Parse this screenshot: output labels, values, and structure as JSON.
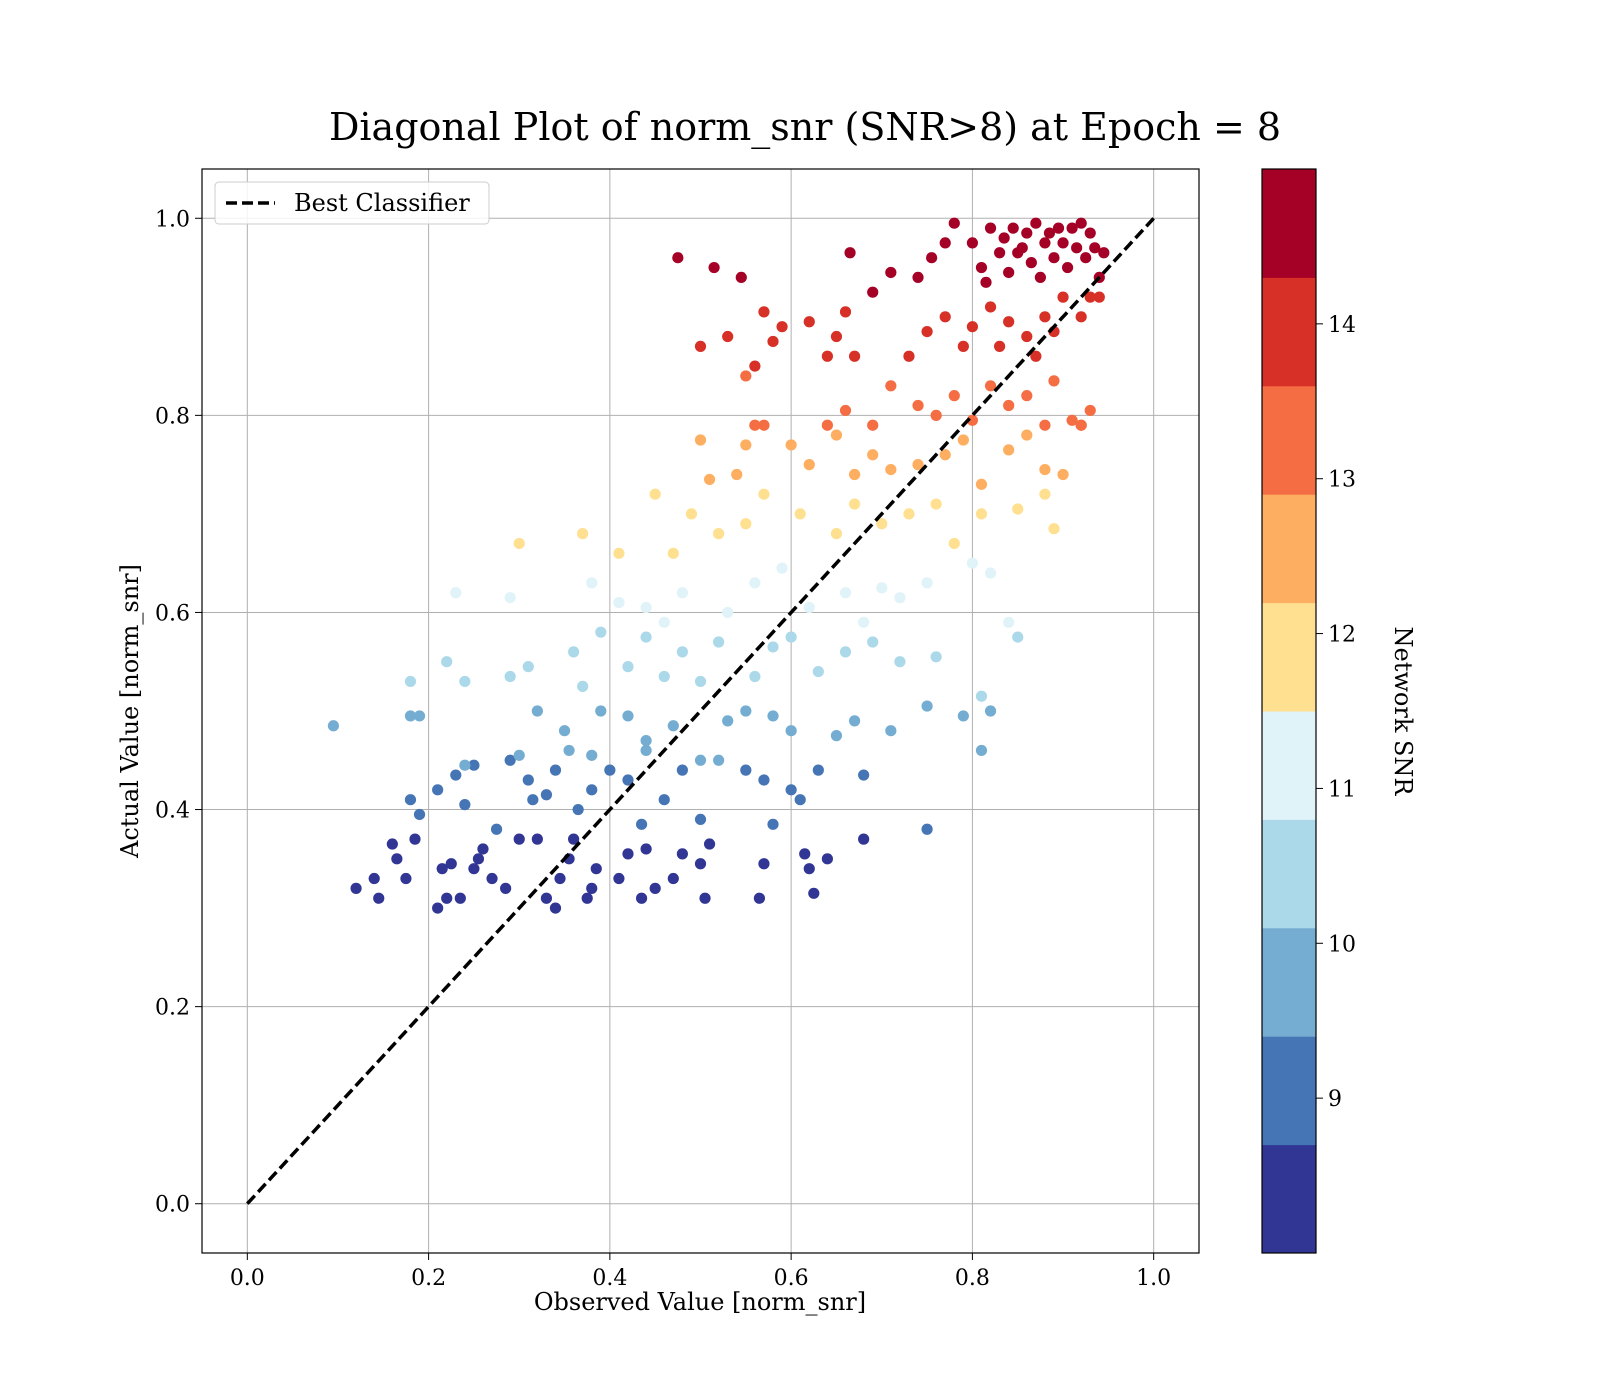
{
  "chart_data": {
    "type": "scatter",
    "title": "Diagonal Plot of norm_snr (SNR>8) at Epoch = 8",
    "xlabel": "Observed Value [norm_snr]",
    "ylabel": "Actual Value [norm_snr]",
    "xlim": [
      -0.05,
      1.05
    ],
    "ylim": [
      -0.05,
      1.05
    ],
    "xticks": [
      0.0,
      0.2,
      0.4,
      0.6,
      0.8,
      1.0
    ],
    "yticks": [
      0.0,
      0.2,
      0.4,
      0.6,
      0.8,
      1.0
    ],
    "xtick_labels": [
      "0.0",
      "0.2",
      "0.4",
      "0.6",
      "0.8",
      "1.0"
    ],
    "ytick_labels": [
      "0.0",
      "0.2",
      "0.4",
      "0.6",
      "0.8",
      "1.0"
    ],
    "grid": true,
    "legend": {
      "placement": "upper-left",
      "entries": [
        "Best Classifier"
      ]
    },
    "reference_line": {
      "name": "Best Classifier",
      "style": "dashed",
      "color": "#000000",
      "x": [
        0.0,
        1.0
      ],
      "y": [
        0.0,
        1.0
      ]
    },
    "colorbar": {
      "label": "Network SNR",
      "range": [
        8,
        15
      ],
      "ticks": [
        9,
        10,
        11,
        12,
        13,
        14
      ],
      "tick_labels": [
        "9",
        "10",
        "11",
        "12",
        "13",
        "14"
      ],
      "colors": [
        "#313695",
        "#4575b4",
        "#74add1",
        "#abd9e9",
        "#e0f3f8",
        "#fee090",
        "#fdae61",
        "#f46d43",
        "#d73027",
        "#a50026"
      ]
    },
    "point_columns": [
      "x",
      "y",
      "snr"
    ],
    "points": [
      [
        0.12,
        0.32,
        8.2
      ],
      [
        0.14,
        0.33,
        8.3
      ],
      [
        0.145,
        0.31,
        8.2
      ],
      [
        0.16,
        0.365,
        8.4
      ],
      [
        0.165,
        0.35,
        8.3
      ],
      [
        0.175,
        0.33,
        8.2
      ],
      [
        0.185,
        0.37,
        8.4
      ],
      [
        0.21,
        0.3,
        8.1
      ],
      [
        0.215,
        0.34,
        8.3
      ],
      [
        0.22,
        0.31,
        8.2
      ],
      [
        0.225,
        0.345,
        8.3
      ],
      [
        0.235,
        0.31,
        8.1
      ],
      [
        0.25,
        0.34,
        8.3
      ],
      [
        0.255,
        0.35,
        8.4
      ],
      [
        0.26,
        0.36,
        8.5
      ],
      [
        0.27,
        0.33,
        8.2
      ],
      [
        0.285,
        0.32,
        8.2
      ],
      [
        0.3,
        0.37,
        8.4
      ],
      [
        0.32,
        0.37,
        8.4
      ],
      [
        0.33,
        0.31,
        8.2
      ],
      [
        0.34,
        0.3,
        8.1
      ],
      [
        0.345,
        0.33,
        8.3
      ],
      [
        0.355,
        0.35,
        8.4
      ],
      [
        0.36,
        0.37,
        8.5
      ],
      [
        0.375,
        0.31,
        8.1
      ],
      [
        0.38,
        0.32,
        8.2
      ],
      [
        0.385,
        0.34,
        8.3
      ],
      [
        0.41,
        0.33,
        8.3
      ],
      [
        0.42,
        0.355,
        8.4
      ],
      [
        0.435,
        0.31,
        8.2
      ],
      [
        0.44,
        0.36,
        8.5
      ],
      [
        0.45,
        0.32,
        8.2
      ],
      [
        0.47,
        0.33,
        8.3
      ],
      [
        0.48,
        0.355,
        8.4
      ],
      [
        0.5,
        0.345,
        8.3
      ],
      [
        0.505,
        0.31,
        8.2
      ],
      [
        0.51,
        0.365,
        8.5
      ],
      [
        0.565,
        0.31,
        8.2
      ],
      [
        0.57,
        0.345,
        8.4
      ],
      [
        0.615,
        0.355,
        8.5
      ],
      [
        0.62,
        0.34,
        8.3
      ],
      [
        0.625,
        0.315,
        8.2
      ],
      [
        0.64,
        0.35,
        8.4
      ],
      [
        0.68,
        0.37,
        8.6
      ],
      [
        0.75,
        0.38,
        8.8
      ],
      [
        0.18,
        0.41,
        9.0
      ],
      [
        0.19,
        0.395,
        8.9
      ],
      [
        0.21,
        0.42,
        9.1
      ],
      [
        0.23,
        0.435,
        9.2
      ],
      [
        0.24,
        0.405,
        9.0
      ],
      [
        0.25,
        0.445,
        9.3
      ],
      [
        0.275,
        0.38,
        8.9
      ],
      [
        0.29,
        0.45,
        9.3
      ],
      [
        0.31,
        0.43,
        9.2
      ],
      [
        0.315,
        0.41,
        9.1
      ],
      [
        0.33,
        0.415,
        9.1
      ],
      [
        0.34,
        0.44,
        9.3
      ],
      [
        0.355,
        0.46,
        9.4
      ],
      [
        0.365,
        0.4,
        9.0
      ],
      [
        0.38,
        0.42,
        9.1
      ],
      [
        0.4,
        0.44,
        9.3
      ],
      [
        0.42,
        0.43,
        9.2
      ],
      [
        0.435,
        0.385,
        8.9
      ],
      [
        0.44,
        0.46,
        9.4
      ],
      [
        0.46,
        0.41,
        9.1
      ],
      [
        0.48,
        0.44,
        9.3
      ],
      [
        0.5,
        0.39,
        8.9
      ],
      [
        0.52,
        0.45,
        9.4
      ],
      [
        0.55,
        0.44,
        9.3
      ],
      [
        0.57,
        0.43,
        9.2
      ],
      [
        0.58,
        0.385,
        8.9
      ],
      [
        0.6,
        0.42,
        9.1
      ],
      [
        0.61,
        0.41,
        9.1
      ],
      [
        0.63,
        0.44,
        9.3
      ],
      [
        0.68,
        0.435,
        9.3
      ],
      [
        0.095,
        0.485,
        9.8
      ],
      [
        0.18,
        0.495,
        9.7
      ],
      [
        0.19,
        0.495,
        9.6
      ],
      [
        0.24,
        0.445,
        9.5
      ],
      [
        0.3,
        0.455,
        9.6
      ],
      [
        0.32,
        0.5,
        9.8
      ],
      [
        0.35,
        0.48,
        9.7
      ],
      [
        0.38,
        0.455,
        9.6
      ],
      [
        0.39,
        0.5,
        9.9
      ],
      [
        0.42,
        0.495,
        9.8
      ],
      [
        0.44,
        0.47,
        9.7
      ],
      [
        0.47,
        0.485,
        9.8
      ],
      [
        0.5,
        0.45,
        9.6
      ],
      [
        0.53,
        0.49,
        9.8
      ],
      [
        0.55,
        0.5,
        9.9
      ],
      [
        0.58,
        0.495,
        9.8
      ],
      [
        0.6,
        0.48,
        9.7
      ],
      [
        0.65,
        0.475,
        9.6
      ],
      [
        0.67,
        0.49,
        9.8
      ],
      [
        0.71,
        0.48,
        9.7
      ],
      [
        0.75,
        0.505,
        9.9
      ],
      [
        0.79,
        0.495,
        9.8
      ],
      [
        0.81,
        0.46,
        9.6
      ],
      [
        0.82,
        0.5,
        9.9
      ],
      [
        0.18,
        0.53,
        10.3
      ],
      [
        0.22,
        0.55,
        10.4
      ],
      [
        0.24,
        0.53,
        10.3
      ],
      [
        0.29,
        0.535,
        10.2
      ],
      [
        0.31,
        0.545,
        10.4
      ],
      [
        0.36,
        0.56,
        10.5
      ],
      [
        0.37,
        0.525,
        10.3
      ],
      [
        0.39,
        0.58,
        10.6
      ],
      [
        0.42,
        0.545,
        10.4
      ],
      [
        0.44,
        0.575,
        10.6
      ],
      [
        0.46,
        0.535,
        10.3
      ],
      [
        0.48,
        0.56,
        10.5
      ],
      [
        0.5,
        0.53,
        10.2
      ],
      [
        0.52,
        0.57,
        10.5
      ],
      [
        0.56,
        0.535,
        10.3
      ],
      [
        0.58,
        0.565,
        10.4
      ],
      [
        0.6,
        0.575,
        10.6
      ],
      [
        0.63,
        0.54,
        10.3
      ],
      [
        0.66,
        0.56,
        10.5
      ],
      [
        0.69,
        0.57,
        10.5
      ],
      [
        0.72,
        0.55,
        10.4
      ],
      [
        0.76,
        0.555,
        10.4
      ],
      [
        0.81,
        0.515,
        10.2
      ],
      [
        0.85,
        0.575,
        10.6
      ],
      [
        0.23,
        0.62,
        11.2
      ],
      [
        0.29,
        0.615,
        11.1
      ],
      [
        0.38,
        0.63,
        11.2
      ],
      [
        0.41,
        0.61,
        11.0
      ],
      [
        0.44,
        0.605,
        11.0
      ],
      [
        0.46,
        0.59,
        10.9
      ],
      [
        0.48,
        0.62,
        11.1
      ],
      [
        0.53,
        0.6,
        11.0
      ],
      [
        0.56,
        0.63,
        11.2
      ],
      [
        0.59,
        0.645,
        11.3
      ],
      [
        0.62,
        0.605,
        11.0
      ],
      [
        0.66,
        0.62,
        11.1
      ],
      [
        0.68,
        0.59,
        10.9
      ],
      [
        0.7,
        0.625,
        11.1
      ],
      [
        0.72,
        0.615,
        11.1
      ],
      [
        0.75,
        0.63,
        11.2
      ],
      [
        0.8,
        0.65,
        11.4
      ],
      [
        0.82,
        0.64,
        11.3
      ],
      [
        0.84,
        0.59,
        10.9
      ],
      [
        0.3,
        0.67,
        11.8
      ],
      [
        0.37,
        0.68,
        11.9
      ],
      [
        0.41,
        0.66,
        11.7
      ],
      [
        0.45,
        0.72,
        12.1
      ],
      [
        0.47,
        0.66,
        11.7
      ],
      [
        0.49,
        0.7,
        12.0
      ],
      [
        0.52,
        0.68,
        11.9
      ],
      [
        0.55,
        0.69,
        11.9
      ],
      [
        0.57,
        0.72,
        12.1
      ],
      [
        0.61,
        0.7,
        12.0
      ],
      [
        0.65,
        0.68,
        11.9
      ],
      [
        0.67,
        0.71,
        12.0
      ],
      [
        0.7,
        0.69,
        11.9
      ],
      [
        0.73,
        0.7,
        12.0
      ],
      [
        0.76,
        0.71,
        12.1
      ],
      [
        0.78,
        0.67,
        11.8
      ],
      [
        0.81,
        0.7,
        12.0
      ],
      [
        0.85,
        0.705,
        12.0
      ],
      [
        0.88,
        0.72,
        12.1
      ],
      [
        0.89,
        0.685,
        11.9
      ],
      [
        0.5,
        0.775,
        12.8
      ],
      [
        0.51,
        0.735,
        12.5
      ],
      [
        0.54,
        0.74,
        12.5
      ],
      [
        0.55,
        0.77,
        12.7
      ],
      [
        0.57,
        0.79,
        12.9
      ],
      [
        0.6,
        0.77,
        12.7
      ],
      [
        0.62,
        0.75,
        12.6
      ],
      [
        0.65,
        0.78,
        12.8
      ],
      [
        0.67,
        0.74,
        12.5
      ],
      [
        0.69,
        0.76,
        12.7
      ],
      [
        0.71,
        0.745,
        12.6
      ],
      [
        0.74,
        0.75,
        12.6
      ],
      [
        0.77,
        0.76,
        12.7
      ],
      [
        0.79,
        0.775,
        12.8
      ],
      [
        0.81,
        0.73,
        12.4
      ],
      [
        0.84,
        0.765,
        12.7
      ],
      [
        0.86,
        0.78,
        12.8
      ],
      [
        0.88,
        0.745,
        12.6
      ],
      [
        0.9,
        0.74,
        12.5
      ],
      [
        0.92,
        0.79,
        12.9
      ],
      [
        0.56,
        0.79,
        13.1
      ],
      [
        0.64,
        0.79,
        13.1
      ],
      [
        0.66,
        0.805,
        13.2
      ],
      [
        0.69,
        0.79,
        13.1
      ],
      [
        0.71,
        0.83,
        13.4
      ],
      [
        0.74,
        0.81,
        13.3
      ],
      [
        0.76,
        0.8,
        13.2
      ],
      [
        0.78,
        0.82,
        13.3
      ],
      [
        0.8,
        0.795,
        13.1
      ],
      [
        0.82,
        0.83,
        13.4
      ],
      [
        0.84,
        0.81,
        13.3
      ],
      [
        0.86,
        0.82,
        13.3
      ],
      [
        0.88,
        0.79,
        13.1
      ],
      [
        0.89,
        0.835,
        13.4
      ],
      [
        0.91,
        0.795,
        13.2
      ],
      [
        0.92,
        0.79,
        13.1
      ],
      [
        0.93,
        0.805,
        13.2
      ],
      [
        0.5,
        0.87,
        13.8
      ],
      [
        0.53,
        0.88,
        13.9
      ],
      [
        0.55,
        0.84,
        13.6
      ],
      [
        0.56,
        0.85,
        13.7
      ],
      [
        0.57,
        0.905,
        14.0
      ],
      [
        0.58,
        0.875,
        13.8
      ],
      [
        0.59,
        0.89,
        13.9
      ],
      [
        0.62,
        0.895,
        13.9
      ],
      [
        0.64,
        0.86,
        13.7
      ],
      [
        0.65,
        0.88,
        13.8
      ],
      [
        0.66,
        0.905,
        14.0
      ],
      [
        0.67,
        0.86,
        13.7
      ],
      [
        0.73,
        0.86,
        13.7
      ],
      [
        0.75,
        0.885,
        13.9
      ],
      [
        0.77,
        0.9,
        14.0
      ],
      [
        0.79,
        0.87,
        13.8
      ],
      [
        0.8,
        0.89,
        13.9
      ],
      [
        0.82,
        0.91,
        14.1
      ],
      [
        0.83,
        0.87,
        13.8
      ],
      [
        0.84,
        0.895,
        13.9
      ],
      [
        0.86,
        0.88,
        13.8
      ],
      [
        0.87,
        0.86,
        13.7
      ],
      [
        0.88,
        0.9,
        14.0
      ],
      [
        0.89,
        0.885,
        13.9
      ],
      [
        0.9,
        0.92,
        14.1
      ],
      [
        0.92,
        0.9,
        14.0
      ],
      [
        0.93,
        0.92,
        14.1
      ],
      [
        0.94,
        0.92,
        14.1
      ],
      [
        0.475,
        0.96,
        14.7
      ],
      [
        0.515,
        0.95,
        14.6
      ],
      [
        0.545,
        0.94,
        14.5
      ],
      [
        0.665,
        0.965,
        14.7
      ],
      [
        0.69,
        0.925,
        14.4
      ],
      [
        0.71,
        0.945,
        14.6
      ],
      [
        0.74,
        0.94,
        14.5
      ],
      [
        0.755,
        0.96,
        14.7
      ],
      [
        0.77,
        0.975,
        14.8
      ],
      [
        0.78,
        0.995,
        14.9
      ],
      [
        0.8,
        0.975,
        14.8
      ],
      [
        0.81,
        0.95,
        14.6
      ],
      [
        0.815,
        0.935,
        14.5
      ],
      [
        0.82,
        0.99,
        14.9
      ],
      [
        0.83,
        0.965,
        14.7
      ],
      [
        0.835,
        0.98,
        14.8
      ],
      [
        0.84,
        0.945,
        14.6
      ],
      [
        0.845,
        0.99,
        14.9
      ],
      [
        0.85,
        0.965,
        14.7
      ],
      [
        0.855,
        0.97,
        14.8
      ],
      [
        0.86,
        0.985,
        14.8
      ],
      [
        0.865,
        0.955,
        14.7
      ],
      [
        0.87,
        0.995,
        14.9
      ],
      [
        0.875,
        0.94,
        14.5
      ],
      [
        0.88,
        0.975,
        14.8
      ],
      [
        0.885,
        0.985,
        14.9
      ],
      [
        0.89,
        0.96,
        14.7
      ],
      [
        0.895,
        0.99,
        14.9
      ],
      [
        0.9,
        0.975,
        14.8
      ],
      [
        0.905,
        0.95,
        14.6
      ],
      [
        0.91,
        0.99,
        14.9
      ],
      [
        0.915,
        0.97,
        14.8
      ],
      [
        0.92,
        0.995,
        14.9
      ],
      [
        0.925,
        0.96,
        14.7
      ],
      [
        0.93,
        0.985,
        14.8
      ],
      [
        0.935,
        0.97,
        14.8
      ],
      [
        0.94,
        0.94,
        14.5
      ],
      [
        0.945,
        0.965,
        14.7
      ]
    ]
  }
}
